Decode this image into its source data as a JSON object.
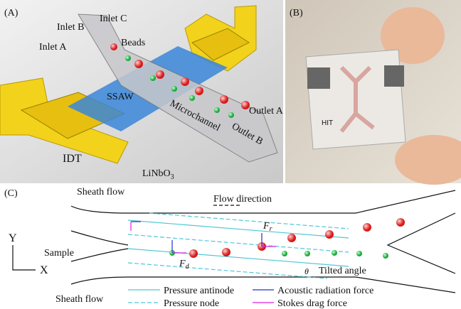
{
  "panel_a": {
    "label": "(A)",
    "inlet_a": "Inlet A",
    "inlet_b": "Inlet B",
    "inlet_c": "Inlet C",
    "beads": "Beads",
    "ssaw": "SSAW",
    "microchannel": "Microchannel",
    "outlet_a": "Outlet A",
    "outlet_b": "Outlet B",
    "idt": "IDT",
    "substrate": {
      "base": "LiNbO",
      "subscript": "3"
    }
  },
  "panel_b": {
    "label": "(B)",
    "chip_text": "HIT"
  },
  "panel_c": {
    "label": "(C)",
    "sheath_flow_top": "Sheath flow",
    "flow_direction": "Flow direction",
    "axis_y": "Y",
    "axis_x": "X",
    "sample": "Sample",
    "sheath_flow_bottom": "Sheath flow",
    "force_r": {
      "symbol": "F",
      "subscript": "r"
    },
    "force_d": {
      "symbol": "F",
      "subscript": "d"
    },
    "angle_symbol": "θ",
    "tilted_angle": "Tilted angle",
    "legend": [
      "Pressure antinode",
      "Pressure node",
      "Acoustic radiation force",
      "Stokes drag force"
    ]
  }
}
